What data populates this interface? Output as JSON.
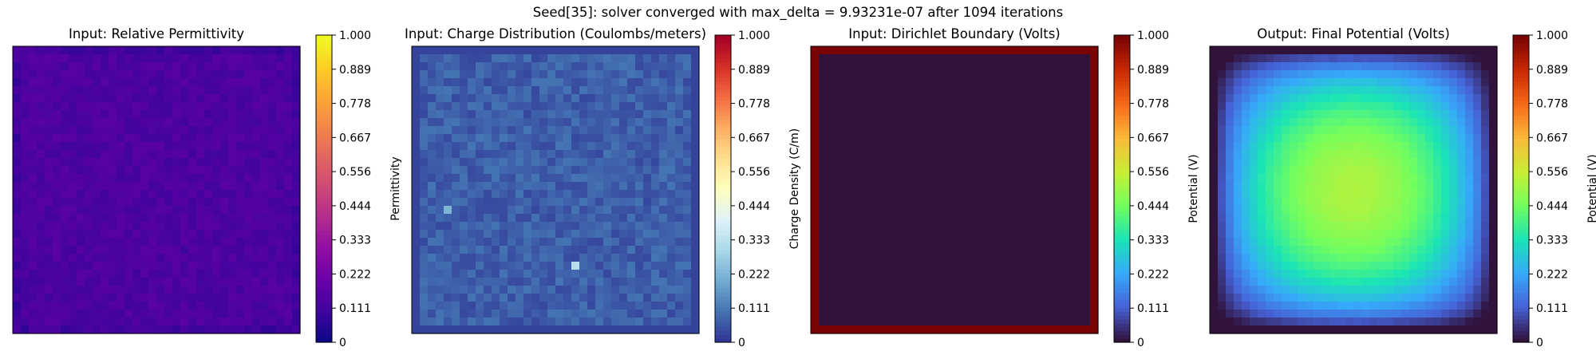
{
  "chart_data": {
    "suptitle": "Seed[35]: solver converged with max_delta = 9.93231e-07 after 1094 iterations",
    "grid_size": 36,
    "colorbar_ticks": [
      "0",
      "0.111",
      "0.222",
      "0.333",
      "0.444",
      "0.556",
      "0.667",
      "0.778",
      "0.889",
      "1.000"
    ],
    "panels": [
      {
        "type": "heatmap",
        "title": "Input: Relative Permittivity",
        "colormap": "plasma",
        "colorbar_label": "Permittivity",
        "clim": [
          0,
          1
        ],
        "approx_value_range": [
          0.06,
          0.16
        ]
      },
      {
        "type": "heatmap",
        "title": "Input: Charge Distribution (Coulombs/meters)",
        "colormap": "RdYlBu_r",
        "colorbar_label": "Charge Density (C/m)",
        "clim": [
          0,
          1
        ],
        "approx_value_range": [
          0.0,
          0.32
        ]
      },
      {
        "type": "heatmap",
        "title": "Input: Dirichlet Boundary (Volts)",
        "colormap": "turbo",
        "colorbar_label": "Potential (V)",
        "clim": [
          0,
          1
        ],
        "boundary_value": 1.0,
        "interior_value": 0.0
      },
      {
        "type": "heatmap",
        "title": "Output: Final Potential (Volts)",
        "colormap": "turbo",
        "colorbar_label": "Potential (V)",
        "clim": [
          0,
          1
        ],
        "approx_value_range": [
          0.0,
          0.48
        ]
      }
    ]
  }
}
